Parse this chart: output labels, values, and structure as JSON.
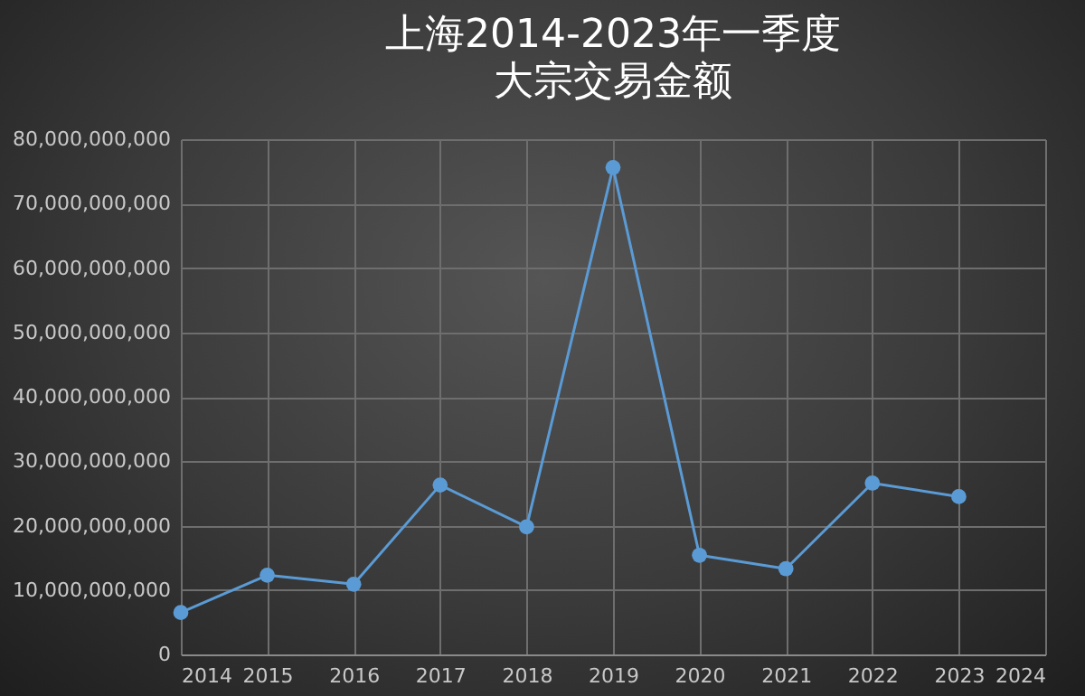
{
  "chart_data": {
    "type": "line",
    "title": "上海2014-2023年一季度",
    "subtitle": "大宗交易金额",
    "x": [
      2014,
      2015,
      2016,
      2017,
      2018,
      2019,
      2020,
      2021,
      2022,
      2023
    ],
    "series": [
      {
        "color": "#5b9bd5",
        "values": [
          6500000000,
          12300000000,
          10900000000,
          26300000000,
          19800000000,
          75600000000,
          15400000000,
          13300000000,
          26600000000,
          24500000000
        ]
      }
    ],
    "xlim": [
      2014,
      2024
    ],
    "xticks": [
      2014,
      2015,
      2016,
      2017,
      2018,
      2019,
      2020,
      2021,
      2022,
      2023,
      2024
    ],
    "ylim": [
      0,
      80000000000
    ],
    "yticks": [
      0,
      {
        "value": 10000000000,
        "label": "10,000,000,000"
      },
      {
        "value": 20000000000,
        "label": "20,000,000,000"
      },
      {
        "value": 30000000000,
        "label": "30,000,000,000"
      },
      {
        "value": 40000000000,
        "label": "40,000,000,000"
      },
      {
        "value": 50000000000,
        "label": "50,000,000,000"
      },
      {
        "value": 60000000000,
        "label": "60,000,000,000"
      },
      {
        "value": 70000000000,
        "label": "70,000,000,000"
      },
      {
        "value": 80000000000,
        "label": "80,000,000,000"
      }
    ],
    "grid": true,
    "marker": "circle",
    "line_style": "solid"
  }
}
